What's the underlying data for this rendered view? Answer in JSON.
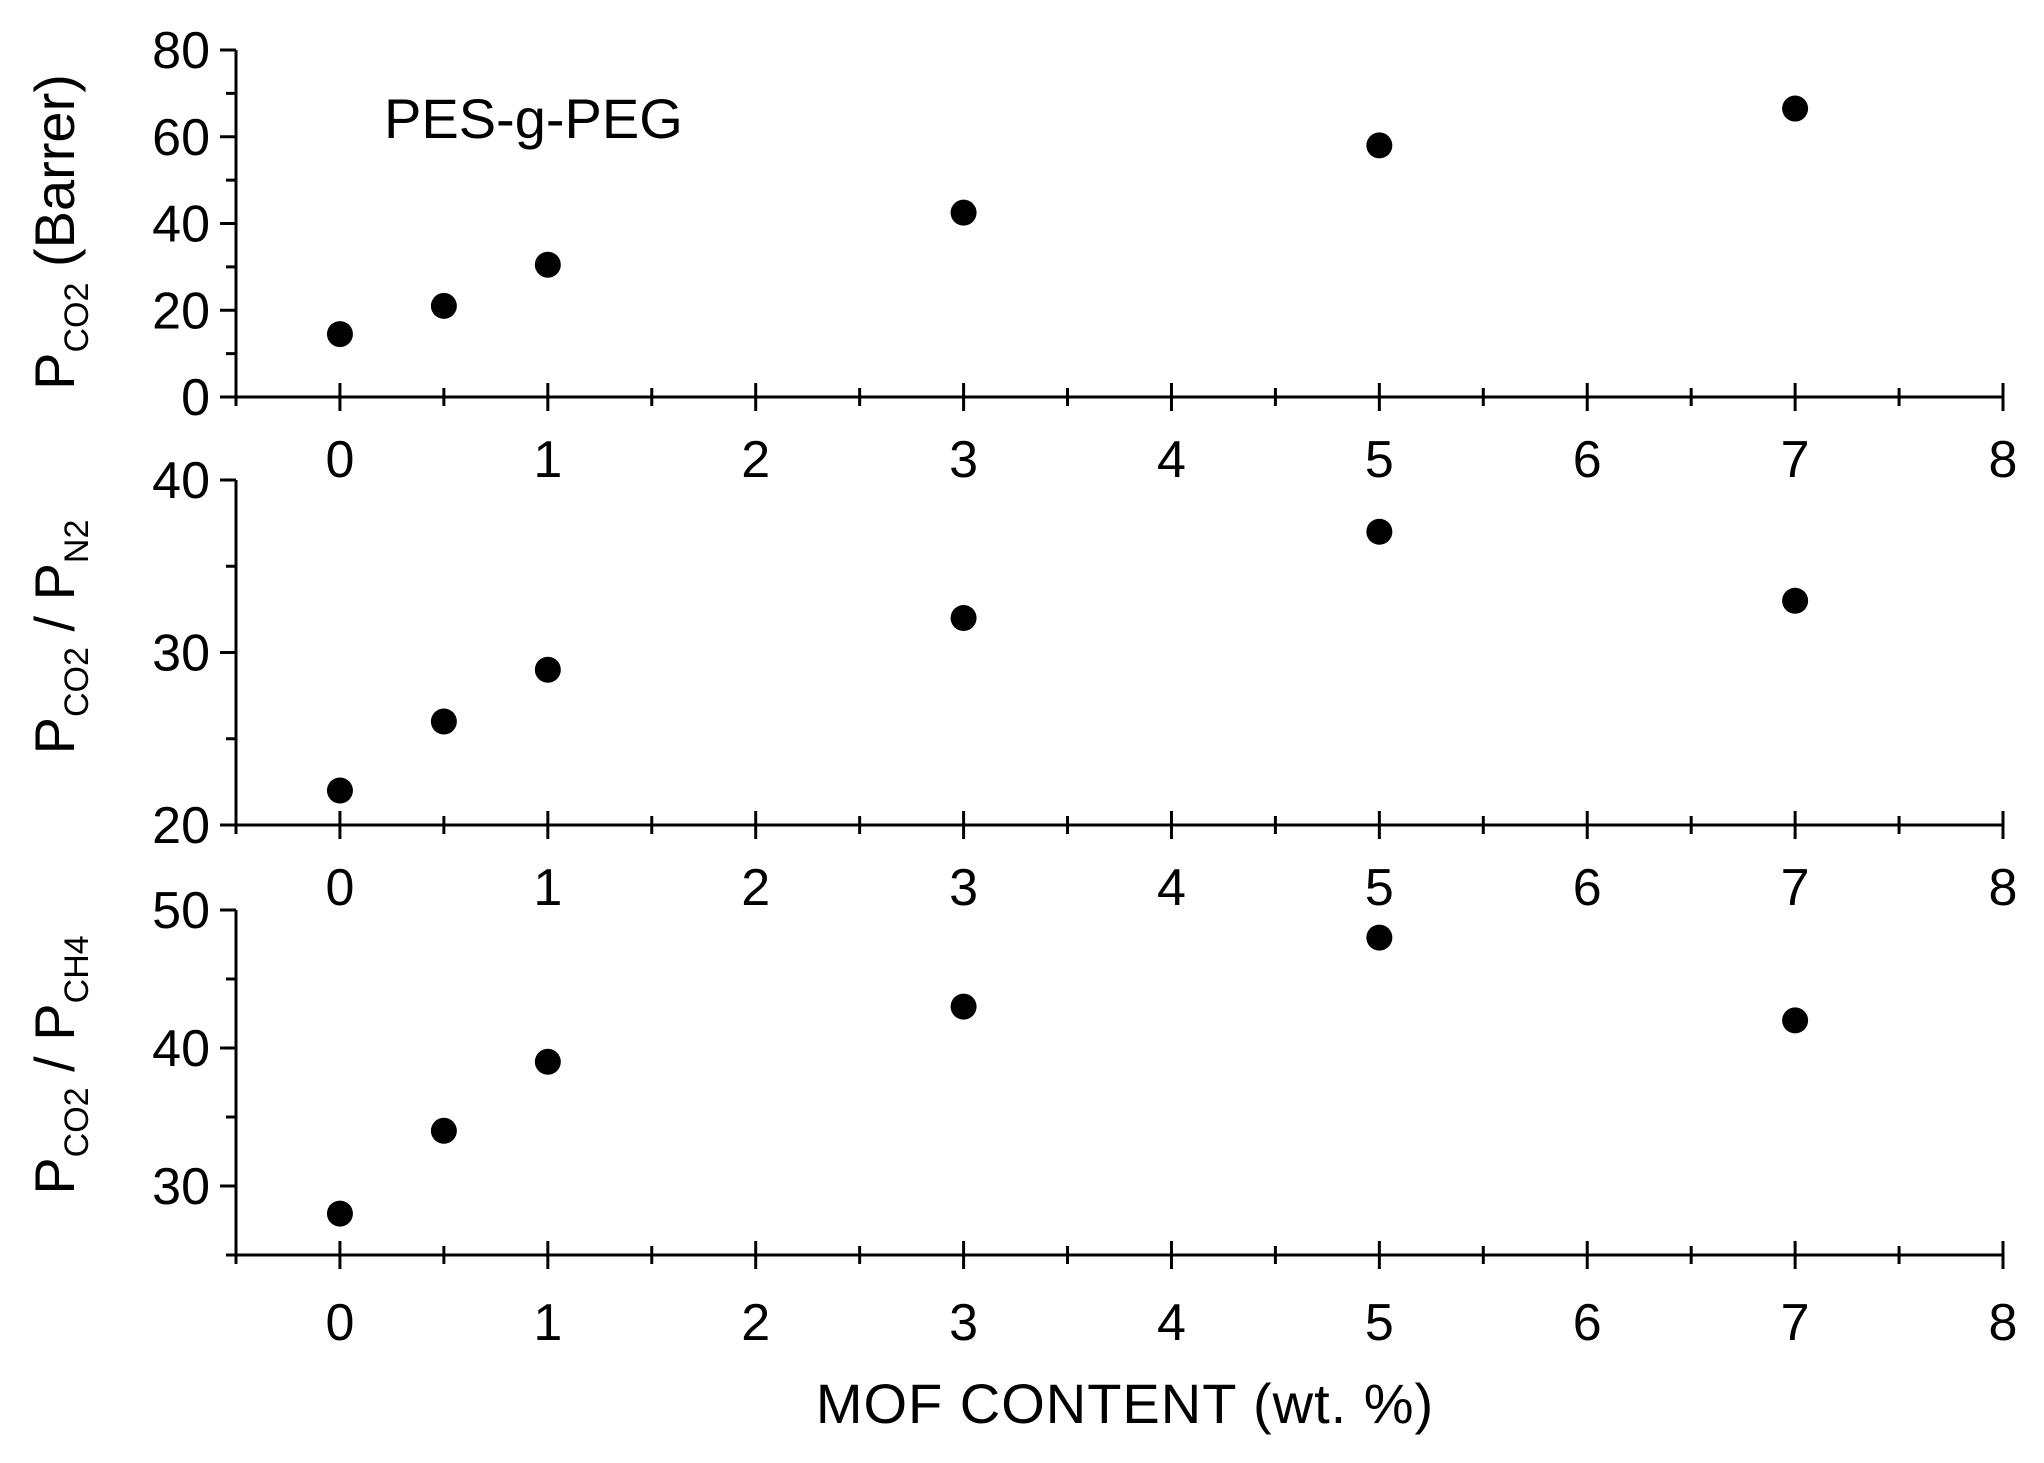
{
  "chart_data": [
    {
      "type": "scatter",
      "title": "",
      "annotation": "PES-g-PEG",
      "ylabel": {
        "main": "P",
        "sub": "CO2",
        "rest": " (Barrer)"
      },
      "xlabel": "",
      "xlim": [
        -0.5,
        8
      ],
      "ylim": [
        0,
        80
      ],
      "xticks": [
        0,
        1,
        2,
        3,
        4,
        5,
        6,
        7,
        8
      ],
      "yticks": [
        0,
        20,
        40,
        60,
        80
      ],
      "x": [
        0,
        0.5,
        1,
        3,
        5,
        7
      ],
      "y": [
        14.5,
        21,
        30.5,
        42.5,
        58,
        66.5
      ],
      "marker": "filled-circle",
      "marker_color": "#000000"
    },
    {
      "type": "scatter",
      "title": "",
      "ylabel": {
        "main": "P",
        "sub": "CO2",
        "rest": " / P",
        "sub2": "N2"
      },
      "xlabel": "",
      "xlim": [
        -0.5,
        8
      ],
      "ylim": [
        20,
        40
      ],
      "xticks": [
        0,
        1,
        2,
        3,
        4,
        5,
        6,
        7,
        8
      ],
      "yticks": [
        20,
        30,
        40
      ],
      "x": [
        0,
        0.5,
        1,
        3,
        5,
        7
      ],
      "y": [
        22,
        26,
        29,
        32,
        37,
        33
      ],
      "marker": "filled-circle",
      "marker_color": "#000000"
    },
    {
      "type": "scatter",
      "title": "",
      "ylabel": {
        "main": "P",
        "sub": "CO2",
        "rest": " / P",
        "sub2": "CH4"
      },
      "xlabel": "MOF  CONTENT   (wt. %)",
      "xlim": [
        -0.5,
        8
      ],
      "ylim": [
        25,
        50
      ],
      "xticks": [
        0,
        1,
        2,
        3,
        4,
        5,
        6,
        7,
        8
      ],
      "yticks": [
        30,
        40,
        50
      ],
      "x": [
        0,
        0.5,
        1,
        3,
        5,
        7
      ],
      "y": [
        28,
        34,
        39,
        43,
        48,
        42
      ],
      "marker": "filled-circle",
      "marker_color": "#000000"
    }
  ]
}
